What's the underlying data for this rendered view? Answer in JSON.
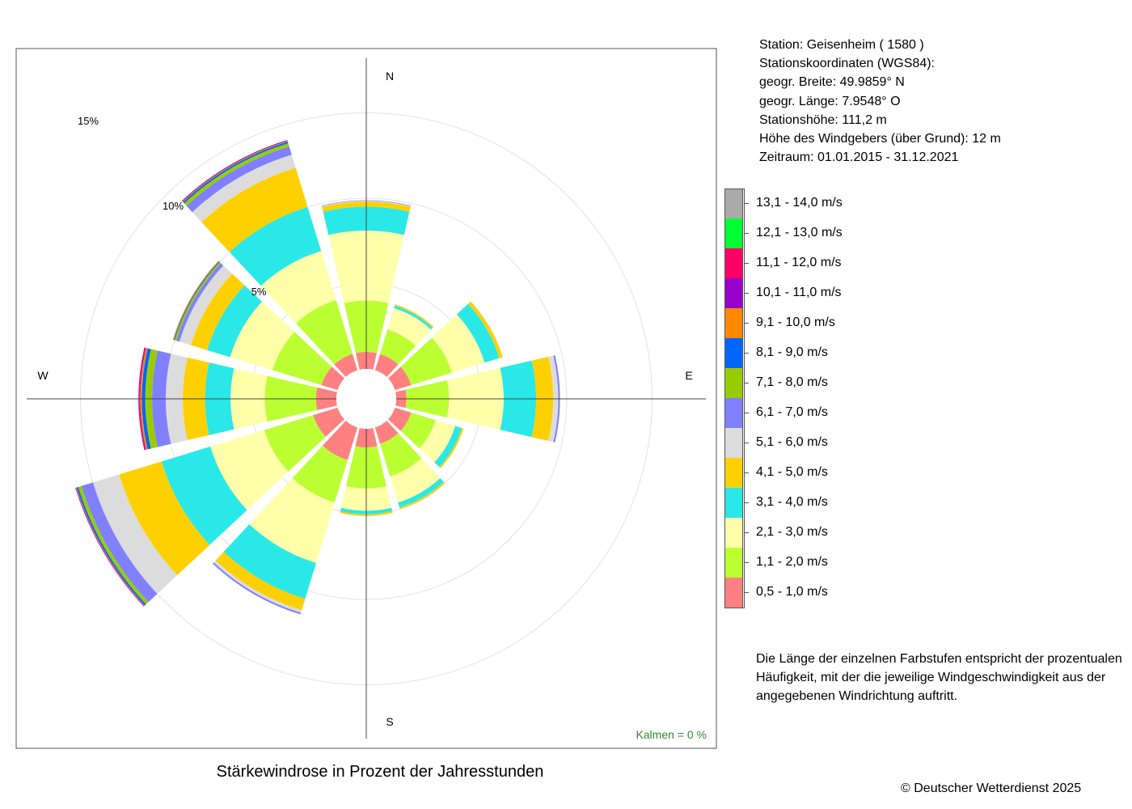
{
  "station": {
    "line_station": "Station:  Geisenheim  ( 1580 )",
    "line_coords": "Stationskoordinaten (WGS84):",
    "line_lat": "geogr. Breite: 49.9859° N",
    "line_lon": "geogr. Länge:   7.9548° O",
    "line_height": "Stationshöhe: 111,2 m",
    "line_sensor": "Höhe des Windgebers (über Grund): 12 m",
    "line_period": "Zeitraum: 01.01.2015 - 31.12.2021"
  },
  "description": "Die Länge der einzelnen Farbstufen entspricht der prozentualen Häufigkeit, mit der die jeweilige Windgeschwindigkeit aus der angegebenen Windrichtung auftritt.",
  "copyright": "© Deutscher Wetterdienst  2025",
  "chart_data": {
    "type": "windrose",
    "title": "Stärkewindrose in Prozent der Jahresstunden",
    "calm_label": "Kalmen  =  0 %",
    "directions": [
      "N",
      "E",
      "S",
      "W"
    ],
    "ring_labels": [
      "5%",
      "10%",
      "15%"
    ],
    "rings": [
      5,
      10,
      15
    ],
    "sector_angles": [
      0,
      30,
      60,
      90,
      120,
      150,
      180,
      210,
      240,
      270,
      300,
      330
    ],
    "classes": [
      {
        "label": "0,5 - 1,0 m/s",
        "color": "#FF8080"
      },
      {
        "label": "1,1 - 2,0 m/s",
        "color": "#BBFF33"
      },
      {
        "label": "2,1 - 3,0 m/s",
        "color": "#FFFFAA"
      },
      {
        "label": "3,1 - 4,0 m/s",
        "color": "#2AE8E8"
      },
      {
        "label": "4,1 - 5,0 m/s",
        "color": "#FFD000"
      },
      {
        "label": "5,1 - 6,0 m/s",
        "color": "#DCDCDC"
      },
      {
        "label": "6,1 - 7,0 m/s",
        "color": "#8080FF"
      },
      {
        "label": "7,1 - 8,0 m/s",
        "color": "#99CC00"
      },
      {
        "label": "8,1 - 9,0 m/s",
        "color": "#0066FF"
      },
      {
        "label": "9,1 - 10,0 m/s",
        "color": "#FF8800"
      },
      {
        "label": "10,1 - 11,0 m/s",
        "color": "#9900CC"
      },
      {
        "label": "11,1 - 12,0 m/s",
        "color": "#FF0066"
      },
      {
        "label": "12,1 - 13,0 m/s",
        "color": "#00FF33"
      },
      {
        "label": "13,1 - 14,0 m/s",
        "color": "#AAAAAA"
      }
    ],
    "sectors": [
      [
        1.0,
        3.0,
        4.1,
        1.4,
        0.3,
        0.05,
        0.03,
        0,
        0,
        0,
        0,
        0,
        0,
        0
      ],
      [
        1.0,
        1.5,
        1.3,
        0.15,
        0.08,
        0,
        0,
        0,
        0,
        0,
        0,
        0,
        0,
        0
      ],
      [
        1.0,
        2.5,
        2.0,
        0.9,
        0.2,
        0.03,
        0,
        0,
        0,
        0,
        0,
        0,
        0,
        0
      ],
      [
        0.6,
        2.5,
        3.2,
        1.9,
        1.0,
        0.3,
        0.1,
        0,
        0,
        0,
        0,
        0,
        0,
        0
      ],
      [
        1.0,
        1.5,
        1.2,
        0.4,
        0.1,
        0,
        0,
        0,
        0,
        0,
        0,
        0,
        0,
        0
      ],
      [
        1.0,
        2.0,
        1.6,
        0.3,
        0.1,
        0.03,
        0,
        0,
        0,
        0,
        0,
        0,
        0,
        0
      ],
      [
        1.1,
        2.4,
        1.3,
        0.2,
        0.1,
        0.02,
        0,
        0,
        0,
        0,
        0,
        0,
        0,
        0
      ],
      [
        2.0,
        2.6,
        3.7,
        2.2,
        0.7,
        0.15,
        0.1,
        0,
        0,
        0,
        0,
        0,
        0,
        0
      ],
      [
        1.5,
        3.0,
        3.3,
        3.0,
        2.6,
        1.6,
        0.7,
        0.2,
        0.1,
        0.03,
        0.02,
        0.03,
        0,
        0
      ],
      [
        1.2,
        3.0,
        2.0,
        1.5,
        1.3,
        1.0,
        0.8,
        0.4,
        0.2,
        0.1,
        0.05,
        0.05,
        0,
        0
      ],
      [
        1.0,
        3.0,
        2.6,
        1.4,
        1.0,
        0.7,
        0.2,
        0.1,
        0.05,
        0.05,
        0,
        0,
        0,
        0
      ],
      [
        1.0,
        3.3,
        3.0,
        2.7,
        2.4,
        0.8,
        0.5,
        0.2,
        0.1,
        0.05,
        0.05,
        0,
        0,
        0
      ]
    ]
  }
}
